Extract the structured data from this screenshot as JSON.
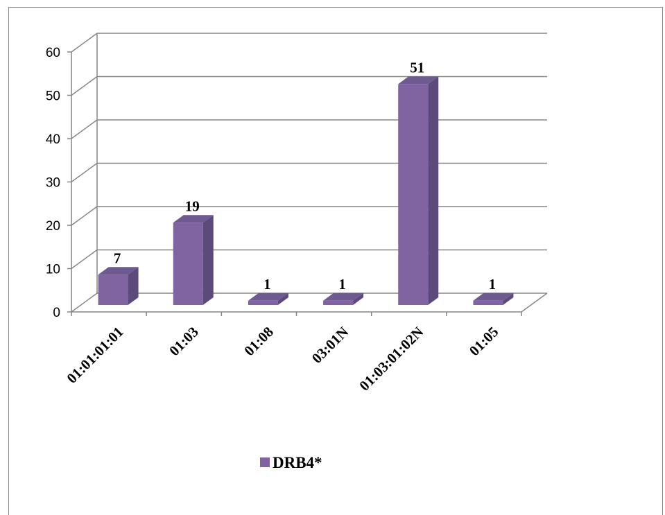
{
  "chart_data": {
    "type": "bar",
    "categories": [
      "01:01:01:01",
      "01:03",
      "01:08",
      "03:01N",
      "01:03:01:02N",
      "01:05"
    ],
    "series": [
      {
        "name": "DRB4*",
        "values": [
          7,
          19,
          1,
          1,
          51,
          1
        ],
        "color": "#8064A2"
      }
    ],
    "ylim": [
      0,
      60
    ],
    "yticks": [
      0,
      10,
      20,
      30,
      40,
      50,
      60
    ],
    "grid": true,
    "legend": "bottom",
    "style": "3d-column"
  }
}
